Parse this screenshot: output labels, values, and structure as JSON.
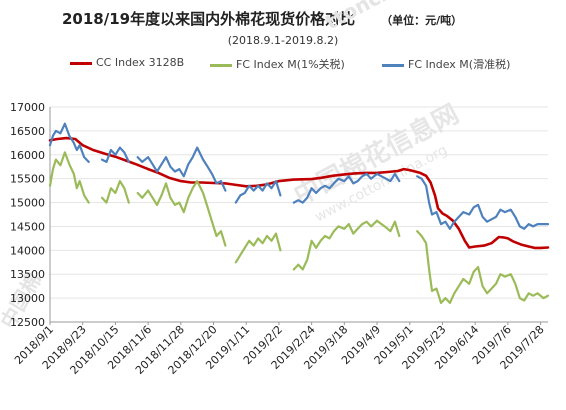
{
  "header": {
    "title": "2018/19年度以来国内外棉花现货价格对比",
    "unit": "（单位：元/吨）",
    "subtitle": "(2018.9.1-2019.8.2)"
  },
  "watermark": {
    "text_top": "ttonchina.org",
    "text_center": "中国棉花信息网",
    "text_center_en": "www.cottonchina.org",
    "text_side": "中国棉"
  },
  "colors": {
    "cc": "#c00000",
    "fc1": "#9bbb59",
    "fc2": "#4f81bd",
    "axis": "#999999",
    "grid": "#e6e6e6"
  },
  "chart_data": {
    "type": "line",
    "title": "2018/19年度以来国内外棉花现货价格对比",
    "subtitle": "(2018.9.1-2019.8.2)",
    "ylim": [
      12500,
      17000
    ],
    "yticks": [
      12500,
      13000,
      13500,
      14000,
      14500,
      15000,
      15500,
      16000,
      16500,
      17000
    ],
    "xlim": [
      "2018-09-01",
      "2019-08-02"
    ],
    "x_tick_labels": [
      "2018/9/1",
      "2018/9/23",
      "2018/10/15",
      "2018/11/6",
      "2018/11/28",
      "2018/12/20",
      "2019/1/11",
      "2019/2/2",
      "2019/2/24",
      "2019/3/18",
      "2019/4/9",
      "2019/5/1",
      "2019/5/23",
      "2019/6/14",
      "2019/7/6",
      "2019/7/28"
    ],
    "legend_position": "top",
    "series": [
      {
        "name": "CC Index 3128B",
        "points": [
          [
            "2018-09-01",
            16300
          ],
          [
            "2018-09-06",
            16330
          ],
          [
            "2018-09-12",
            16350
          ],
          [
            "2018-09-18",
            16330
          ],
          [
            "2018-09-23",
            16200
          ],
          [
            "2018-09-30",
            16100
          ],
          [
            "2018-10-08",
            16020
          ],
          [
            "2018-10-15",
            15960
          ],
          [
            "2018-10-22",
            15880
          ],
          [
            "2018-10-29",
            15800
          ],
          [
            "2018-11-06",
            15700
          ],
          [
            "2018-11-13",
            15620
          ],
          [
            "2018-11-20",
            15520
          ],
          [
            "2018-11-28",
            15450
          ],
          [
            "2018-12-05",
            15420
          ],
          [
            "2018-12-12",
            15420
          ],
          [
            "2018-12-20",
            15410
          ],
          [
            "2018-12-28",
            15400
          ],
          [
            "2019-01-04",
            15370
          ],
          [
            "2019-01-11",
            15340
          ],
          [
            "2019-01-18",
            15350
          ],
          [
            "2019-01-25",
            15380
          ],
          [
            "2019-02-02",
            15450
          ],
          [
            "2019-02-12",
            15480
          ],
          [
            "2019-02-24",
            15490
          ],
          [
            "2019-03-03",
            15520
          ],
          [
            "2019-03-10",
            15560
          ],
          [
            "2019-03-18",
            15590
          ],
          [
            "2019-03-25",
            15610
          ],
          [
            "2019-04-01",
            15620
          ],
          [
            "2019-04-09",
            15620
          ],
          [
            "2019-04-16",
            15640
          ],
          [
            "2019-04-23",
            15660
          ],
          [
            "2019-04-27",
            15700
          ],
          [
            "2019-05-01",
            15680
          ],
          [
            "2019-05-08",
            15620
          ],
          [
            "2019-05-12",
            15560
          ],
          [
            "2019-05-15",
            15420
          ],
          [
            "2019-05-18",
            15150
          ],
          [
            "2019-05-20",
            14880
          ],
          [
            "2019-05-23",
            14770
          ],
          [
            "2019-05-26",
            14720
          ],
          [
            "2019-05-30",
            14620
          ],
          [
            "2019-06-03",
            14450
          ],
          [
            "2019-06-07",
            14200
          ],
          [
            "2019-06-10",
            14060
          ],
          [
            "2019-06-14",
            14080
          ],
          [
            "2019-06-20",
            14100
          ],
          [
            "2019-06-25",
            14150
          ],
          [
            "2019-06-30",
            14280
          ],
          [
            "2019-07-03",
            14270
          ],
          [
            "2019-07-06",
            14250
          ],
          [
            "2019-07-10",
            14180
          ],
          [
            "2019-07-15",
            14120
          ],
          [
            "2019-07-20",
            14080
          ],
          [
            "2019-07-24",
            14050
          ],
          [
            "2019-07-28",
            14050
          ],
          [
            "2019-08-02",
            14060
          ]
        ]
      },
      {
        "name": "FC Index M(1%关税)",
        "points": [
          [
            "2018-09-01",
            15350
          ],
          [
            "2018-09-03",
            15700
          ],
          [
            "2018-09-05",
            15900
          ],
          [
            "2018-09-08",
            15780
          ],
          [
            "2018-09-11",
            16050
          ],
          [
            "2018-09-14",
            15800
          ],
          [
            "2018-09-17",
            15600
          ],
          [
            "2018-09-19",
            15300
          ],
          [
            "2018-09-21",
            15450
          ],
          [
            "2018-09-24",
            15150
          ],
          [
            "2018-09-27",
            15000
          ],
          null,
          [
            "2018-10-06",
            15100
          ],
          [
            "2018-10-09",
            15000
          ],
          [
            "2018-10-12",
            15300
          ],
          [
            "2018-10-15",
            15200
          ],
          [
            "2018-10-18",
            15450
          ],
          [
            "2018-10-21",
            15300
          ],
          [
            "2018-10-24",
            15000
          ],
          null,
          [
            "2018-10-30",
            15200
          ],
          [
            "2018-11-02",
            15100
          ],
          [
            "2018-11-06",
            15250
          ],
          [
            "2018-11-09",
            15100
          ],
          [
            "2018-11-12",
            14950
          ],
          [
            "2018-11-15",
            15150
          ],
          [
            "2018-11-18",
            15400
          ],
          [
            "2018-11-21",
            15100
          ],
          [
            "2018-11-24",
            14950
          ],
          [
            "2018-11-27",
            15000
          ],
          [
            "2018-11-30",
            14800
          ],
          [
            "2018-12-03",
            15100
          ],
          [
            "2018-12-06",
            15300
          ],
          [
            "2018-12-09",
            15450
          ],
          [
            "2018-12-13",
            15200
          ],
          [
            "2018-12-16",
            14900
          ],
          [
            "2018-12-19",
            14600
          ],
          [
            "2018-12-22",
            14300
          ],
          [
            "2018-12-25",
            14400
          ],
          [
            "2018-12-28",
            14100
          ],
          null,
          [
            "2019-01-04",
            13750
          ],
          [
            "2019-01-07",
            13900
          ],
          [
            "2019-01-10",
            14050
          ],
          [
            "2019-01-13",
            14200
          ],
          [
            "2019-01-16",
            14100
          ],
          [
            "2019-01-19",
            14250
          ],
          [
            "2019-01-22",
            14150
          ],
          [
            "2019-01-25",
            14300
          ],
          [
            "2019-01-28",
            14200
          ],
          [
            "2019-01-31",
            14350
          ],
          [
            "2019-02-03",
            14000
          ],
          null,
          [
            "2019-02-12",
            13600
          ],
          [
            "2019-02-15",
            13700
          ],
          [
            "2019-02-18",
            13600
          ],
          [
            "2019-02-21",
            13800
          ],
          [
            "2019-02-24",
            14200
          ],
          [
            "2019-02-27",
            14050
          ],
          [
            "2019-03-02",
            14200
          ],
          [
            "2019-03-05",
            14300
          ],
          [
            "2019-03-08",
            14250
          ],
          [
            "2019-03-11",
            14400
          ],
          [
            "2019-03-14",
            14500
          ],
          [
            "2019-03-18",
            14450
          ],
          [
            "2019-03-21",
            14550
          ],
          [
            "2019-03-24",
            14350
          ],
          [
            "2019-03-27",
            14450
          ],
          [
            "2019-03-30",
            14550
          ],
          [
            "2019-04-02",
            14600
          ],
          [
            "2019-04-05",
            14500
          ],
          [
            "2019-04-09",
            14620
          ],
          [
            "2019-04-12",
            14550
          ],
          [
            "2019-04-15",
            14480
          ],
          [
            "2019-04-18",
            14400
          ],
          [
            "2019-04-21",
            14600
          ],
          [
            "2019-04-24",
            14300
          ],
          null,
          [
            "2019-05-06",
            14400
          ],
          [
            "2019-05-09",
            14300
          ],
          [
            "2019-05-12",
            14150
          ],
          [
            "2019-05-14",
            13600
          ],
          [
            "2019-05-16",
            13150
          ],
          [
            "2019-05-19",
            13200
          ],
          [
            "2019-05-22",
            12900
          ],
          [
            "2019-05-25",
            13000
          ],
          [
            "2019-05-28",
            12900
          ],
          [
            "2019-05-31",
            13100
          ],
          [
            "2019-06-03",
            13250
          ],
          [
            "2019-06-06",
            13400
          ],
          [
            "2019-06-10",
            13300
          ],
          [
            "2019-06-13",
            13550
          ],
          [
            "2019-06-16",
            13650
          ],
          [
            "2019-06-19",
            13250
          ],
          [
            "2019-06-22",
            13100
          ],
          [
            "2019-06-25",
            13200
          ],
          [
            "2019-06-28",
            13300
          ],
          [
            "2019-07-01",
            13500
          ],
          [
            "2019-07-04",
            13450
          ],
          [
            "2019-07-08",
            13500
          ],
          [
            "2019-07-11",
            13300
          ],
          [
            "2019-07-14",
            13000
          ],
          [
            "2019-07-17",
            12950
          ],
          [
            "2019-07-20",
            13100
          ],
          [
            "2019-07-23",
            13050
          ],
          [
            "2019-07-26",
            13100
          ],
          [
            "2019-07-30",
            13000
          ],
          [
            "2019-08-02",
            13050
          ]
        ]
      },
      {
        "name": "FC Index M(滑准税)",
        "points": [
          [
            "2018-09-01",
            16200
          ],
          [
            "2018-09-03",
            16400
          ],
          [
            "2018-09-05",
            16500
          ],
          [
            "2018-09-08",
            16450
          ],
          [
            "2018-09-11",
            16650
          ],
          [
            "2018-09-14",
            16400
          ],
          [
            "2018-09-17",
            16250
          ],
          [
            "2018-09-19",
            16100
          ],
          [
            "2018-09-21",
            16200
          ],
          [
            "2018-09-24",
            15950
          ],
          [
            "2018-09-27",
            15850
          ],
          null,
          [
            "2018-10-06",
            15900
          ],
          [
            "2018-10-09",
            15850
          ],
          [
            "2018-10-12",
            16100
          ],
          [
            "2018-10-15",
            16000
          ],
          [
            "2018-10-18",
            16150
          ],
          [
            "2018-10-21",
            16050
          ],
          [
            "2018-10-24",
            15850
          ],
          null,
          [
            "2018-10-30",
            15950
          ],
          [
            "2018-11-02",
            15850
          ],
          [
            "2018-11-06",
            15950
          ],
          [
            "2018-11-09",
            15800
          ],
          [
            "2018-11-12",
            15650
          ],
          [
            "2018-11-15",
            15800
          ],
          [
            "2018-11-18",
            15950
          ],
          [
            "2018-11-21",
            15750
          ],
          [
            "2018-11-24",
            15650
          ],
          [
            "2018-11-27",
            15700
          ],
          [
            "2018-11-30",
            15550
          ],
          [
            "2018-12-03",
            15800
          ],
          [
            "2018-12-06",
            15950
          ],
          [
            "2018-12-09",
            16150
          ],
          [
            "2018-12-13",
            15900
          ],
          [
            "2018-12-16",
            15750
          ],
          [
            "2018-12-19",
            15600
          ],
          [
            "2018-12-22",
            15400
          ],
          [
            "2018-12-25",
            15450
          ],
          [
            "2018-12-28",
            15250
          ],
          null,
          [
            "2019-01-04",
            15000
          ],
          [
            "2019-01-07",
            15150
          ],
          [
            "2019-01-10",
            15200
          ],
          [
            "2019-01-13",
            15350
          ],
          [
            "2019-01-16",
            15250
          ],
          [
            "2019-01-19",
            15350
          ],
          [
            "2019-01-22",
            15250
          ],
          [
            "2019-01-25",
            15400
          ],
          [
            "2019-01-28",
            15300
          ],
          [
            "2019-01-31",
            15450
          ],
          [
            "2019-02-03",
            15150
          ],
          null,
          [
            "2019-02-12",
            15000
          ],
          [
            "2019-02-15",
            15050
          ],
          [
            "2019-02-18",
            15000
          ],
          [
            "2019-02-21",
            15100
          ],
          [
            "2019-02-24",
            15300
          ],
          [
            "2019-02-27",
            15200
          ],
          [
            "2019-03-02",
            15300
          ],
          [
            "2019-03-05",
            15350
          ],
          [
            "2019-03-08",
            15300
          ],
          [
            "2019-03-11",
            15400
          ],
          [
            "2019-03-14",
            15500
          ],
          [
            "2019-03-18",
            15450
          ],
          [
            "2019-03-21",
            15550
          ],
          [
            "2019-03-24",
            15400
          ],
          [
            "2019-03-27",
            15450
          ],
          [
            "2019-03-30",
            15550
          ],
          [
            "2019-04-02",
            15600
          ],
          [
            "2019-04-05",
            15500
          ],
          [
            "2019-04-09",
            15600
          ],
          [
            "2019-04-12",
            15550
          ],
          [
            "2019-04-15",
            15500
          ],
          [
            "2019-04-18",
            15450
          ],
          [
            "2019-04-21",
            15600
          ],
          [
            "2019-04-24",
            15450
          ],
          null,
          [
            "2019-05-06",
            15550
          ],
          [
            "2019-05-09",
            15500
          ],
          [
            "2019-05-12",
            15350
          ],
          [
            "2019-05-14",
            15000
          ],
          [
            "2019-05-16",
            14750
          ],
          [
            "2019-05-19",
            14800
          ],
          [
            "2019-05-22",
            14550
          ],
          [
            "2019-05-25",
            14600
          ],
          [
            "2019-05-28",
            14450
          ],
          [
            "2019-05-31",
            14600
          ],
          [
            "2019-06-03",
            14700
          ],
          [
            "2019-06-06",
            14800
          ],
          [
            "2019-06-10",
            14750
          ],
          [
            "2019-06-13",
            14900
          ],
          [
            "2019-06-16",
            14950
          ],
          [
            "2019-06-19",
            14700
          ],
          [
            "2019-06-22",
            14600
          ],
          [
            "2019-06-25",
            14650
          ],
          [
            "2019-06-28",
            14700
          ],
          [
            "2019-07-01",
            14850
          ],
          [
            "2019-07-04",
            14800
          ],
          [
            "2019-07-08",
            14850
          ],
          [
            "2019-07-11",
            14700
          ],
          [
            "2019-07-14",
            14500
          ],
          [
            "2019-07-17",
            14450
          ],
          [
            "2019-07-20",
            14550
          ],
          [
            "2019-07-23",
            14500
          ],
          [
            "2019-07-26",
            14550
          ],
          [
            "2019-07-30",
            14550
          ],
          [
            "2019-08-02",
            14550
          ]
        ]
      }
    ]
  }
}
